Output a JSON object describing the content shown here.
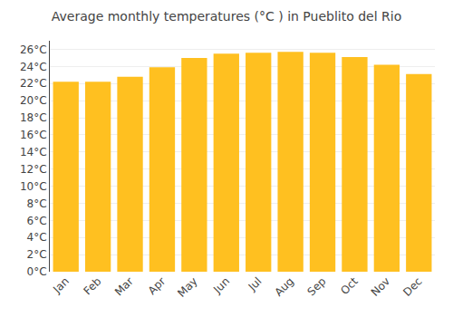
{
  "chart_data": {
    "type": "bar",
    "title": "Average monthly temperatures (°C ) in Pueblito del Rio",
    "categories": [
      "Jan",
      "Feb",
      "Mar",
      "Apr",
      "May",
      "Jun",
      "Jul",
      "Aug",
      "Sep",
      "Oct",
      "Nov",
      "Dec"
    ],
    "values": [
      22.2,
      22.2,
      22.8,
      23.9,
      25.0,
      25.5,
      25.6,
      25.7,
      25.6,
      25.1,
      24.2,
      23.1
    ],
    "color": "#FFC020",
    "ylim": [
      0,
      27
    ],
    "yticks": [
      {
        "value": 0,
        "label": "0°C"
      },
      {
        "value": 2,
        "label": "2°C"
      },
      {
        "value": 4,
        "label": "4°C"
      },
      {
        "value": 6,
        "label": "6°C"
      },
      {
        "value": 8,
        "label": "8°C"
      },
      {
        "value": 10,
        "label": "10°C"
      },
      {
        "value": 12,
        "label": "12°C"
      },
      {
        "value": 14,
        "label": "14°C"
      },
      {
        "value": 16,
        "label": "16°C"
      },
      {
        "value": 18,
        "label": "18°C"
      },
      {
        "value": 20,
        "label": "20°C"
      },
      {
        "value": 22,
        "label": "22°C"
      },
      {
        "value": 24,
        "label": "24°C"
      },
      {
        "value": 26,
        "label": "26°C"
      }
    ],
    "grid": true
  }
}
